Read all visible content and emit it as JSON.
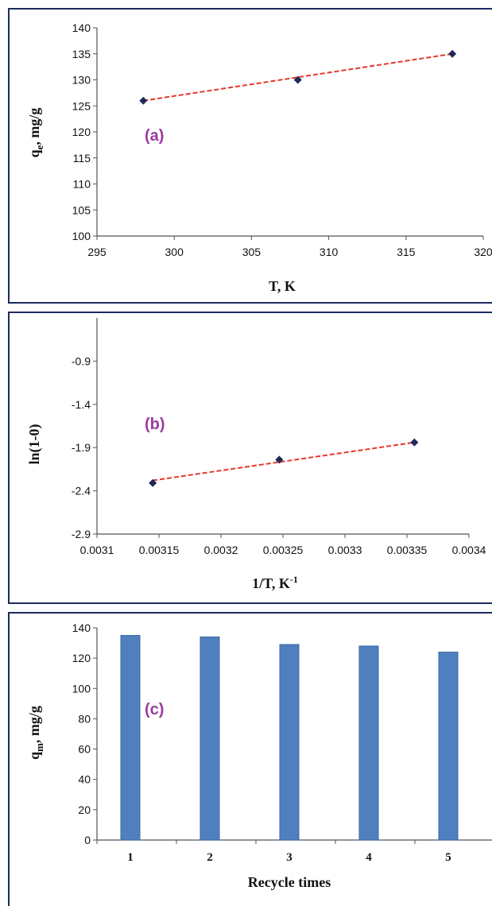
{
  "colors": {
    "marker": "#1f2a5a",
    "fit_line": "#e8362a",
    "bar": "#4f7fbf",
    "bar_edge": "#3d6aa5",
    "panel_label": "#9b3a9e",
    "frame": "#1c2b5e"
  },
  "chart_data": [
    {
      "type": "scatter",
      "panel_label": "(a)",
      "xlabel": "T, K",
      "ylabel_main": "q",
      "ylabel_sub": "e",
      "ylabel_rest": ", mg/g",
      "x": [
        298,
        308,
        318
      ],
      "y": [
        126,
        130,
        135
      ],
      "fit_line": {
        "x": [
          298,
          318
        ],
        "y": [
          126,
          135
        ],
        "style": "dashed"
      },
      "xlim": [
        295,
        320
      ],
      "ylim": [
        100,
        140
      ],
      "xticks": [
        "295",
        "300",
        "305",
        "310",
        "315",
        "320"
      ],
      "yticks": [
        "100",
        "105",
        "110",
        "115",
        "120",
        "125",
        "130",
        "135",
        "140"
      ],
      "marker": "diamond",
      "grid": false
    },
    {
      "type": "scatter",
      "panel_label": "(b)",
      "xlabel_main": "1/T, K",
      "xlabel_sup": "-1",
      "ylabel": "ln(1-0)",
      "x": [
        0.003145,
        0.003247,
        0.003356
      ],
      "y": [
        -2.31,
        -2.04,
        -1.84
      ],
      "fit_line": {
        "x": [
          0.003145,
          0.003356
        ],
        "y": [
          -2.28,
          -1.84
        ],
        "style": "dashed"
      },
      "xlim": [
        0.0031,
        0.0034
      ],
      "ylim": [
        -2.9,
        -0.4
      ],
      "xticks": [
        "0.0031",
        "0.00315",
        "0.0032",
        "0.00325",
        "0.0033",
        "0.00335",
        "0.0034"
      ],
      "yticks": [
        "-2.9",
        "-2.4",
        "-1.9",
        "-1.4",
        "-0.9"
      ],
      "marker": "diamond",
      "grid": false
    },
    {
      "type": "bar",
      "panel_label": "(c)",
      "xlabel": "Recycle times",
      "ylabel_main": "q",
      "ylabel_sub": "m",
      "ylabel_rest": ", mg/g",
      "categories": [
        "1",
        "2",
        "3",
        "4",
        "5"
      ],
      "values": [
        135,
        134,
        129,
        128,
        124
      ],
      "ylim": [
        0,
        140
      ],
      "yticks": [
        "0",
        "20",
        "40",
        "60",
        "80",
        "100",
        "120",
        "140"
      ],
      "grid": false
    }
  ]
}
